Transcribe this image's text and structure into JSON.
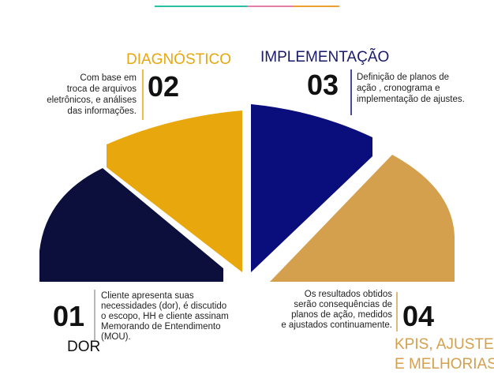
{
  "steps": [
    {
      "number": "01",
      "title": "DOR",
      "description": [
        "Cliente apresenta suas",
        "necessidades (dor), é discutido",
        "o escopo, HH e cliente assinam",
        "Memorando de Entendimento",
        "(MOU)."
      ]
    },
    {
      "number": "02",
      "title": "DIAGNÓSTICO",
      "description": [
        "Com base em",
        "troca de arquivos",
        "eletrônicos, e análises",
        "das informações."
      ]
    },
    {
      "number": "03",
      "title": "IMPLEMENTAÇÃO",
      "description": [
        "Definição de planos de",
        "ação , cronograma e",
        "implementação de ajustes."
      ]
    },
    {
      "number": "04",
      "title": [
        "KPIS, AJUSTES",
        "E MELHORIAS"
      ],
      "description": [
        "Os resultados obtidos",
        "serão consequências de",
        "planos de ação, medidos",
        "e ajustados continuamente."
      ]
    }
  ]
}
